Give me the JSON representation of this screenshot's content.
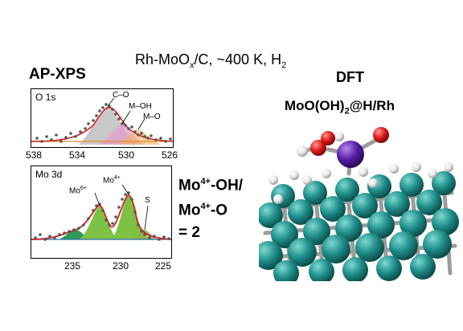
{
  "header": {
    "main_title_prefix": "Rh-MoO",
    "main_title_sub": "x",
    "main_title_suffix": "/C, ~400 K, H",
    "main_title_sub2": "2"
  },
  "left": {
    "section_title": "AP-XPS",
    "o1s": {
      "label": "O 1s",
      "peaks": [
        "C–O",
        "M–OH",
        "M–O"
      ],
      "ticks": [
        "538",
        "534",
        "530",
        "526"
      ]
    },
    "mo3d": {
      "label": "Mo 3d",
      "peak_mo6_base": "Mo",
      "peak_mo6_sup": "6+",
      "peak_mo4_base": "Mo",
      "peak_mo4_sup": "4+",
      "peak_s": "S",
      "ticks": [
        "235",
        "230",
        "225"
      ]
    }
  },
  "ratio": {
    "line1_base": "Mo",
    "line1_sup": "4+",
    "line1_suffix": "-OH/",
    "line2_base": "Mo",
    "line2_sup": "4+",
    "line2_suffix": "-O",
    "line3": "= 2"
  },
  "right": {
    "section_title": "DFT",
    "model_prefix": "MoO(OH)",
    "model_sub": "2",
    "model_suffix": "@H/Rh"
  },
  "colors": {
    "fit_envelope": "#d62020",
    "mo4_fill": "#7ec244",
    "mo6_fill": "#2f9a5a",
    "rh_atom": "#1f8f8b",
    "mo_atom": "#5a1fa8",
    "o_atom": "#e21b1b",
    "h_atom": "#f2f2f2"
  }
}
